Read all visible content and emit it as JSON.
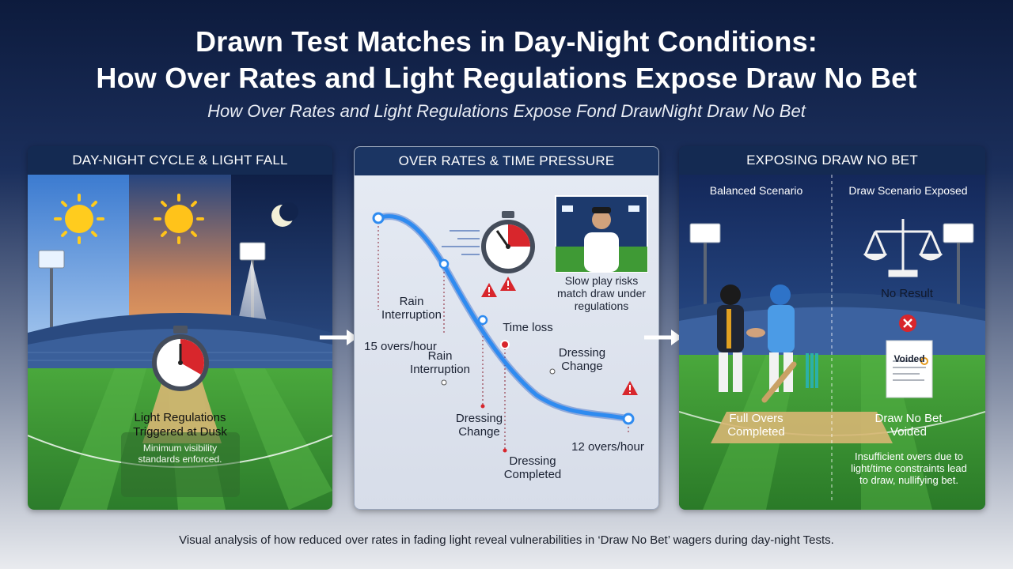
{
  "title_line1": "Drawn Test Matches in Day-Night Conditions:",
  "title_line2": "How Over Rates and Light Regulations Expose Draw No Bet",
  "subtitle": "How Over Rates and Light Regulations Expose Fond DrawNight Draw No Bet",
  "panel1": {
    "header": "DAY-NIGHT CYCLE & LIGHT FALL",
    "label_line1": "Light Regulations",
    "label_line2": "Triggered at Dusk",
    "note_line1": "Minimum visibility",
    "note_line2": "standards enforced."
  },
  "panel2": {
    "header": "OVER RATES & TIME PRESSURE",
    "start_label": "15 overs/hour",
    "end_label": "12 overs/hour",
    "rain1_line1": "Rain",
    "rain1_line2": "Interruption",
    "rain2_line1": "Rain",
    "rain2_line2": "Interruption",
    "time_loss": "Time loss",
    "dressing1_line1": "Dressing",
    "dressing1_line2": "Change",
    "dressing2_line1": "Dressing",
    "dressing2_line2": "Change",
    "dressing3_line1": "Dressing",
    "dressing3_line2": "Completed",
    "umpire_line1": "Slow play risks",
    "umpire_line2": "match draw under",
    "umpire_line3": "regulations"
  },
  "panel3": {
    "header": "EXPOSING DRAW NO BET",
    "left_heading": "Balanced Scenario",
    "right_heading": "Draw Scenario Exposed",
    "no_result": "No Result",
    "voided_ticket": "Voided",
    "left_label_line1": "Full Overs",
    "left_label_line2": "Completed",
    "right_label_line1": "Draw No Bet",
    "right_label_line2": "Voided",
    "note_line1": "Insufficient overs due to",
    "note_line2": "light/time constraints lead",
    "note_line3": "to draw, nullifying bet."
  },
  "caption": "Visual analysis of how reduced over rates in fading light reveal vulnerabilities in ‘Draw No Bet’ wagers during day-night Tests.",
  "colors": {
    "navy": "#142a52",
    "curve_blue": "#2f8bf0",
    "warning_red": "#d8262c",
    "field_green": "#3f9a35"
  }
}
